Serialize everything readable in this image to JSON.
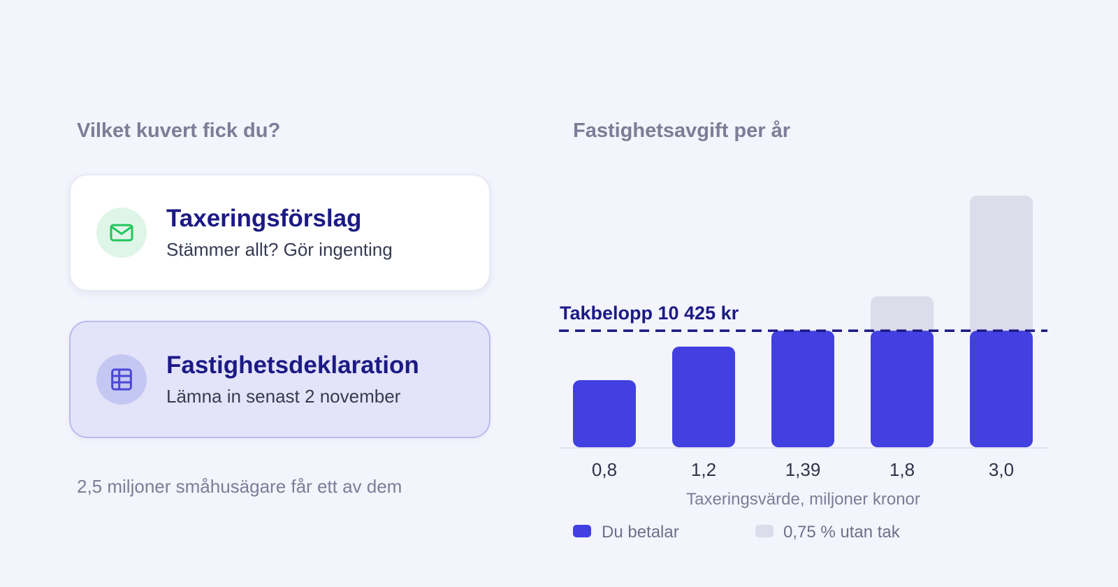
{
  "left": {
    "heading": "Vilket kuvert fick du?",
    "cards": [
      {
        "title": "Taxeringsförslag",
        "subtitle": "Stämmer allt? Gör ingenting",
        "icon": "envelope-icon",
        "icon_color": "#22c55e"
      },
      {
        "title": "Fastighetsdeklaration",
        "subtitle": "Lämna in senast 2 november",
        "icon": "table-icon",
        "icon_color": "#4b47d6"
      }
    ],
    "footnote": "2,5 miljoner småhusägare får ett av dem"
  },
  "right": {
    "heading": "Fastighetsavgift per år"
  },
  "chart_data": {
    "type": "bar",
    "stacked": true,
    "categories": [
      "0,8",
      "1,2",
      "1,39",
      "1,8",
      "3,0"
    ],
    "x": [
      0.8,
      1.2,
      1.39,
      1.8,
      3.0
    ],
    "xlabel": "Taxeringsvärde, miljoner kronor",
    "ylabel": "",
    "ylim": [
      0,
      22500
    ],
    "grid": false,
    "series": [
      {
        "name": "Du betalar",
        "values": [
          6000,
          9000,
          10425,
          10425,
          10425
        ],
        "color": "#4240e0"
      },
      {
        "name": "0,75 % utan tak",
        "values": [
          0,
          0,
          0,
          3075,
          12075
        ],
        "color": "#dcdcea"
      }
    ],
    "reference_line": {
      "value": 10425,
      "label": "Takbelopp 10 425 kr",
      "color": "#1c1a85",
      "style": "dashed"
    },
    "legend": "bottom-left"
  }
}
